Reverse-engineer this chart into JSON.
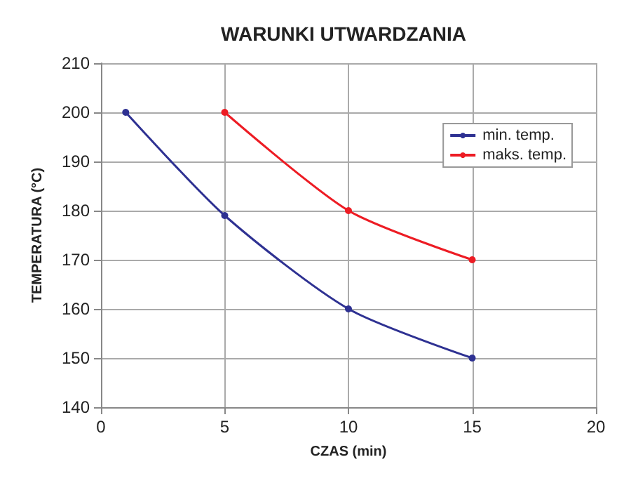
{
  "chart_data": {
    "type": "line",
    "title": "WARUNKI UTWARDZANIA",
    "xlabel": "CZAS (min)",
    "ylabel": "TEMPERATURA (°C)",
    "series": [
      {
        "name": "min. temp.",
        "color": "#2e3192",
        "x": [
          1,
          5,
          10,
          15
        ],
        "values": [
          200,
          179,
          160,
          150
        ]
      },
      {
        "name": "maks. temp.",
        "color": "#ed1c24",
        "x": [
          5,
          10,
          15
        ],
        "values": [
          200,
          180,
          170
        ]
      }
    ],
    "xlim": [
      0,
      20
    ],
    "xticks": [
      0,
      5,
      10,
      15,
      20
    ],
    "ylim": [
      140,
      210
    ],
    "yticks": [
      140,
      150,
      160,
      170,
      180,
      190,
      200,
      210
    ],
    "grid": true,
    "legend": "top right",
    "marker": "circle",
    "line_style": "solid"
  }
}
